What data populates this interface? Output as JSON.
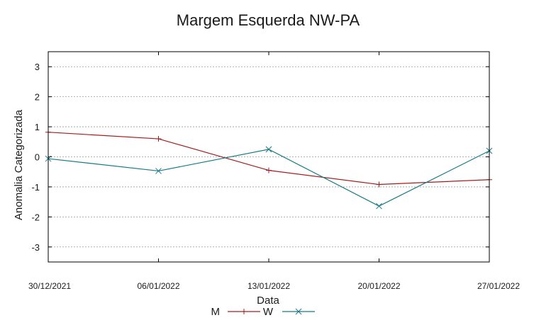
{
  "chart_data": {
    "type": "line",
    "title": "Margem Esquerda NW-PA",
    "xlabel": "Data",
    "ylabel": "Anomalia Categorizada",
    "categories": [
      "30/12/2021",
      "06/01/2022",
      "13/01/2022",
      "20/01/2022",
      "27/01/2022"
    ],
    "ylim": [
      -3.5,
      3.5
    ],
    "yticks": [
      3,
      2,
      1,
      0,
      -1,
      -2,
      -3
    ],
    "grid": true,
    "legend_position": "bottom-center",
    "series": [
      {
        "name": "M",
        "color": "#a11d1d",
        "marker": "plus",
        "values": [
          0.82,
          0.6,
          -0.45,
          -0.92,
          -0.76
        ]
      },
      {
        "name": "W",
        "color": "#167a86",
        "marker": "cross",
        "values": [
          -0.06,
          -0.47,
          0.25,
          -1.64,
          0.2
        ]
      }
    ]
  }
}
